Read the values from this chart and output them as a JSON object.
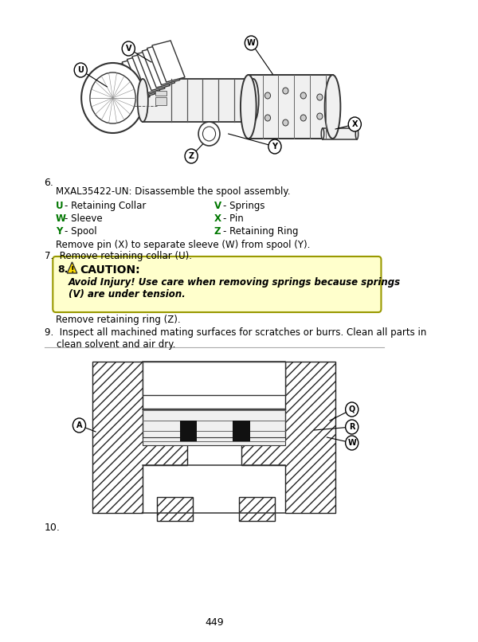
{
  "page_bg": "#ffffff",
  "page_number": "449",
  "item6_label": "6.",
  "item7_text": "7.  Remove retaining collar (U).",
  "item8_caution_body": "Avoid Injury! Use care when removing springs because springs\n(V) are under tension.",
  "item9_text_a": "Remove retaining ring (Z).",
  "item9_text_b": "9.  Inspect all machined mating surfaces for scratches or burrs. Clean all parts in\n    clean solvent and air dry.",
  "item10_label": "10.",
  "caption_line1": "MXAL35422-UN: Disassemble the spool assembly.",
  "legend_items": [
    [
      "U",
      "Retaining Collar",
      "V",
      "Springs"
    ],
    [
      "W",
      "Sleeve",
      "X",
      "Pin"
    ],
    [
      "Y",
      "Spool",
      "Z",
      "Retaining Ring"
    ]
  ],
  "remove_pin_text": "Remove pin (X) to separate sleeve (W) from spool (Y).",
  "caution_bg": "#ffffcc",
  "caution_border": "#cccc00",
  "legend_color": "#007700",
  "text_color": "#000000",
  "divider_color": "#aaaaaa"
}
